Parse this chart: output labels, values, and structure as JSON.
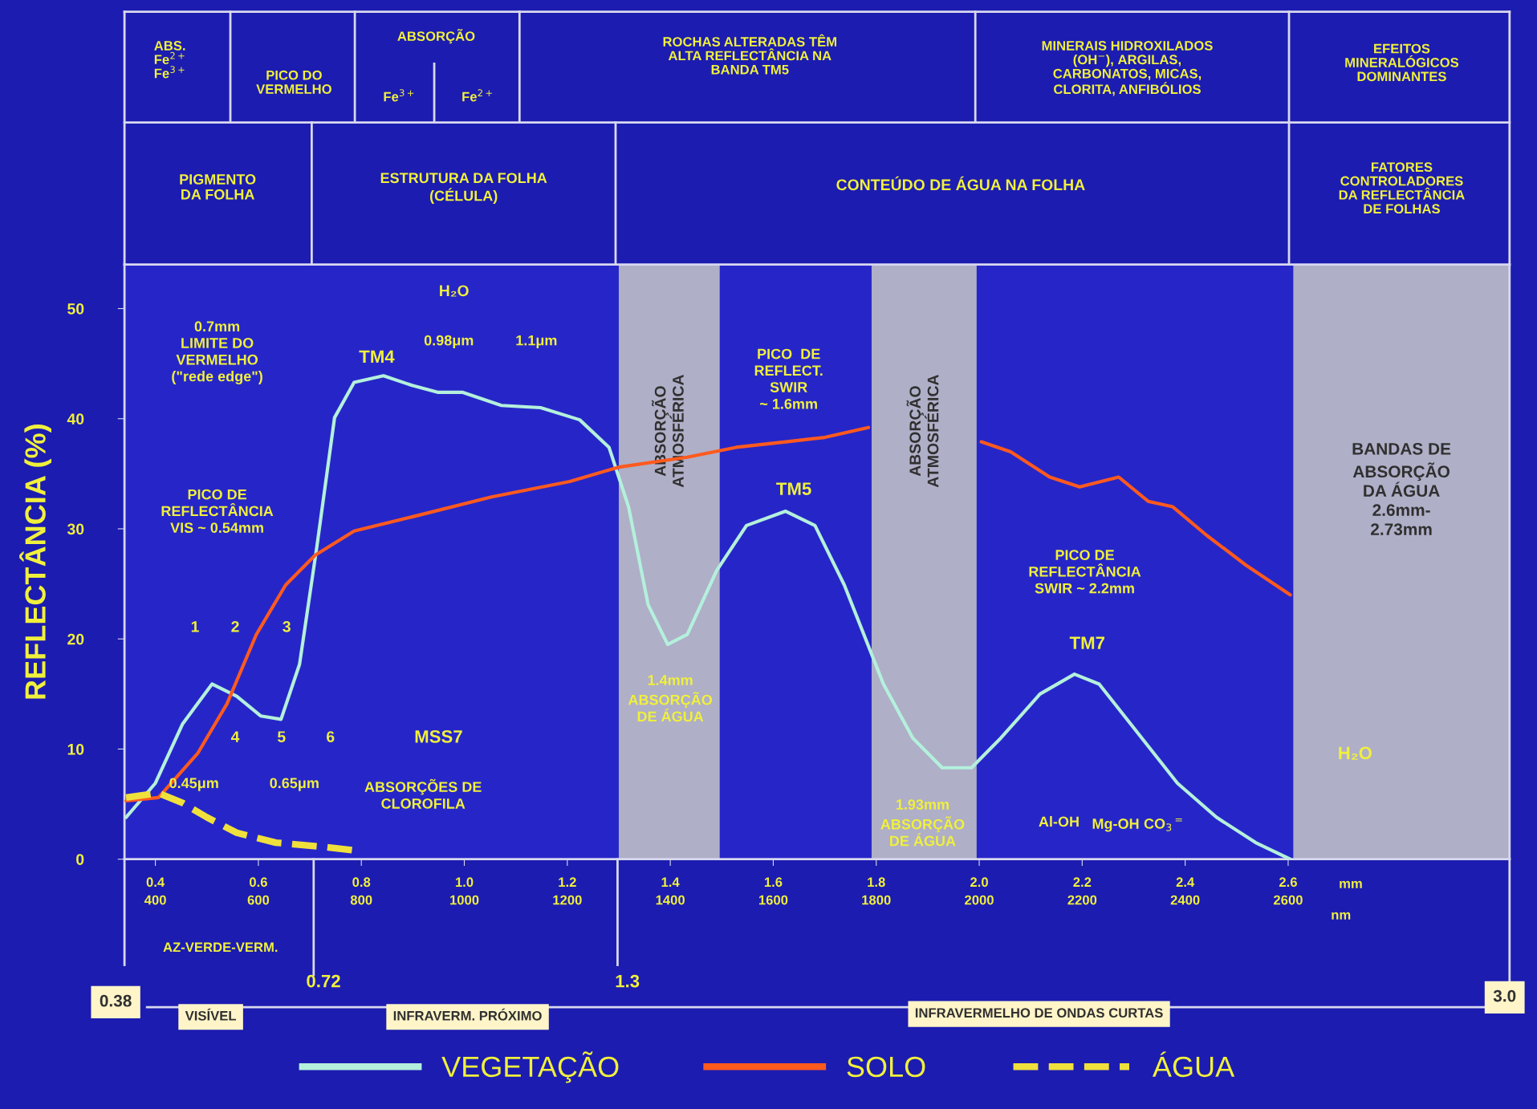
{
  "chart_data": {
    "type": "line",
    "ylabel": "REFLECTÂNCIA (%)",
    "xlim": [
      0.34,
      3.03
    ],
    "ylim": [
      0,
      54
    ],
    "xticks": [
      0.4,
      0.6,
      0.8,
      {
        "value": 1,
        "label": "1.0"
      },
      1.2,
      1.4,
      1.6,
      1.8,
      {
        "value": 2,
        "label": "2.0"
      },
      2.2,
      2.4,
      2.6
    ],
    "x2lim": [
      340,
      3030
    ],
    "x2ticks": [
      400,
      600,
      800,
      1000,
      1200,
      1400,
      1600,
      1800,
      2000,
      2200,
      2400,
      2600
    ],
    "yticks": [
      0,
      10,
      20,
      30,
      40,
      50
    ],
    "grid": false,
    "legend": "bottom",
    "marker": "none",
    "series": [
      {
        "name": "VEGETAÇÃO",
        "color": "#b4f0dc",
        "line_style": "solid",
        "x": [
          0.343,
          0.4,
          0.453,
          0.51,
          0.558,
          0.605,
          0.644,
          0.68,
          0.714,
          0.748,
          0.786,
          0.843,
          0.9,
          0.948,
          0.996,
          1.072,
          1.148,
          1.224,
          1.281,
          1.319,
          1.357,
          1.395,
          1.433,
          1.49,
          1.548,
          1.624,
          1.681,
          1.738,
          1.814,
          1.871,
          1.928,
          1.985,
          2.042,
          2.118,
          2.185,
          2.233,
          2.309,
          2.385,
          2.461,
          2.537,
          2.604
        ],
        "values": [
          3.8,
          6.9,
          12.3,
          15.9,
          14.8,
          13.0,
          12.7,
          17.7,
          28.5,
          40.1,
          43.3,
          43.9,
          43.0,
          42.4,
          42.4,
          41.2,
          41.0,
          39.9,
          37.4,
          32.0,
          23.1,
          19.5,
          20.4,
          26.2,
          30.3,
          31.6,
          30.3,
          24.9,
          15.9,
          11.0,
          8.3,
          8.3,
          11.0,
          15.0,
          16.8,
          15.9,
          11.4,
          6.9,
          3.8,
          1.5,
          0
        ]
      },
      {
        "name": "SOLO",
        "color": "#ff5a1e",
        "line_style": "solid",
        "x": [
          0.343,
          0.406,
          0.482,
          0.539,
          0.596,
          0.653,
          0.71,
          0.786,
          0.9,
          1.053,
          1.205,
          1.3,
          1.433,
          1.528,
          1.624,
          1.7,
          1.785,
          1.9,
          2.004,
          2.061,
          2.137,
          2.195,
          2.271,
          2.328,
          2.376,
          2.442,
          2.518,
          2.604
        ],
        "values": [
          5.3,
          5.6,
          9.6,
          14.1,
          20.4,
          24.9,
          27.6,
          29.8,
          31.1,
          32.9,
          34.3,
          35.6,
          36.5,
          37.4,
          37.9,
          38.3,
          39.2,
          null,
          37.9,
          37.0,
          34.7,
          33.8,
          34.7,
          32.5,
          32.0,
          29.4,
          26.7,
          24.0
        ]
      },
      {
        "name": "ÁGUA",
        "color": "#f0e03c",
        "line_style": "dashed",
        "x": [
          0.343,
          0.406,
          0.453,
          0.5,
          0.558,
          0.634,
          0.73,
          0.786
        ],
        "values": [
          5.6,
          6.0,
          5.1,
          3.8,
          2.4,
          1.5,
          1.1,
          0.8
        ]
      }
    ],
    "bands": [
      {
        "axis": "x",
        "from": 1.3,
        "to": 1.496,
        "label": "ABSORÇÃO\nATMOSFÉRICA",
        "color": "#c8c8c8"
      },
      {
        "axis": "x",
        "from": 1.791,
        "to": 1.995,
        "label": "ABSORÇÃO\nATMOSFÉRICA",
        "color": "#c8c8c8"
      },
      {
        "axis": "x",
        "from": 2.61,
        "to": 3.03,
        "label": "BANDAS DE\nABSORÇÃO\nDA ÁGUA\n2.6mm-\n2.73mm",
        "color": "#c8c8c8"
      }
    ],
    "annotations": [
      "ABS.\nFe$^{2+}$\nFe$^{3+}$",
      "PICO DO\nVERMELHO",
      "ABSORÇÃO",
      "Fe$^{3+}$",
      "Fe$^{2+}$",
      "ROCHAS ALTERADAS TÊM\nALTA REFLECTÂNCIA NA\nBANDA TM5",
      "MINERAIS HIDROXILADOS\n(OH$^{−}$), ARGILAS,\nCARBONATOS, MICAS,\nCLORITA, ANFIBÓLIOS",
      "EFEITOS\nMINERALÓGICOS\nDOMINANTES",
      "PIGMENTO\nDA FOLHA",
      "ESTRUTURA DA FOLHA\n(CÉLULA)",
      "CONTEÚDO DE ÁGUA NA FOLHA",
      "FATORES\nCONTROLADORES\nDA REFLECTÂNCIA\nDE FOLHAS",
      "AZ-VERDE-VERM.",
      "0.38",
      "0.72",
      "1.3",
      "3.0",
      "VISÍVEL",
      "INFRAVERM. PRÓXIMO",
      "INFRAVERMELHO DE ONDAS CURTAS",
      "mm",
      "nm",
      "H₂O",
      "0.7mm\nLIMITE DO\nVERMELHO\n(\"rede edge\")",
      "PICO DE\nREFLECTÂNCIA\nVIS ~ 0.54mm",
      "0.98μm",
      "1.1μm",
      "1.4mm\nABSORÇÃO\nDE ÁGUA",
      "PICO  DE\nREFLECT.\nSWIR\n~ 1.6mm",
      "1.93mm\nABSORÇÃO\nDE ÁGUA",
      "PICO DE\nREFLECTÂNCIA\nSWIR ~ 2.2mm",
      "H₂O",
      "Al-OH",
      "Mg-OH",
      "CO$_{3}$$^{=}$",
      "0.45μm",
      "0.65μm",
      "ABSORÇÕES DE\nCLOROFILA",
      "1",
      "2",
      "3",
      "4",
      "5",
      "6",
      "TM4",
      "MSS7",
      "TM5",
      "TM7"
    ]
  }
}
